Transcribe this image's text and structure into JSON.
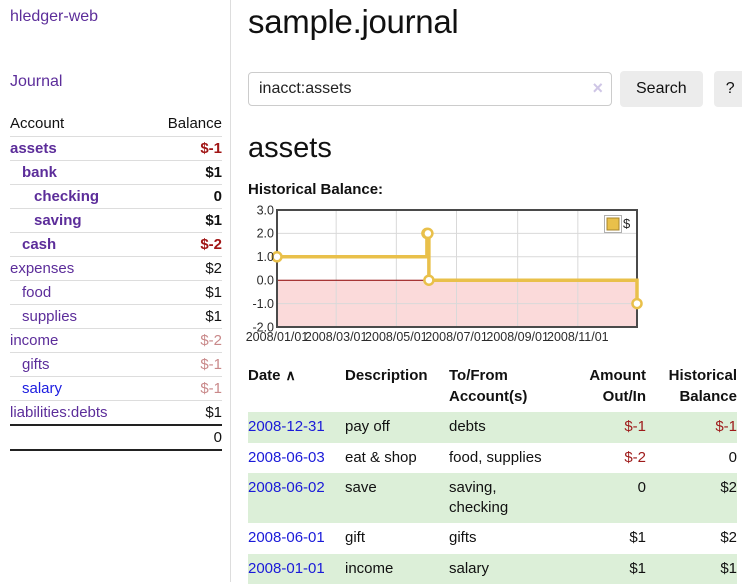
{
  "sidebar": {
    "app_title": "hledger-web",
    "journal_link": "Journal",
    "accounts": {
      "headers": {
        "account": "Account",
        "balance": "Balance"
      },
      "rows": [
        {
          "name": "assets",
          "indent": 0,
          "bold": true,
          "link": "purple",
          "balance": "$-1",
          "style": "neg-strong"
        },
        {
          "name": "bank",
          "indent": 1,
          "bold": true,
          "link": "purple",
          "balance": "$1",
          "style": "pos-strong"
        },
        {
          "name": "checking",
          "indent": 2,
          "bold": true,
          "link": "purple",
          "balance": "0",
          "style": "pos-strong"
        },
        {
          "name": "saving",
          "indent": 2,
          "bold": true,
          "link": "purple",
          "balance": "$1",
          "style": "pos-strong"
        },
        {
          "name": "cash",
          "indent": 1,
          "bold": true,
          "link": "purple",
          "balance": "$-2",
          "style": "neg-strong"
        },
        {
          "name": "expenses",
          "indent": 0,
          "bold": false,
          "link": "purple",
          "balance": "$2",
          "style": "pos"
        },
        {
          "name": "food",
          "indent": 1,
          "bold": false,
          "link": "purple",
          "balance": "$1",
          "style": "pos"
        },
        {
          "name": "supplies",
          "indent": 1,
          "bold": false,
          "link": "purple",
          "balance": "$1",
          "style": "pos"
        },
        {
          "name": "income",
          "indent": 0,
          "bold": false,
          "link": "purple",
          "balance": "$-2",
          "style": "neg-faded"
        },
        {
          "name": "gifts",
          "indent": 1,
          "bold": false,
          "link": "purple",
          "balance": "$-1",
          "style": "neg-faded"
        },
        {
          "name": "salary",
          "indent": 1,
          "bold": false,
          "link": "blue",
          "balance": "$-1",
          "style": "neg-faded"
        },
        {
          "name": "liabilities:debts",
          "indent": 0,
          "bold": false,
          "link": "purple",
          "balance": "$1",
          "style": "pos"
        }
      ],
      "total": "0"
    }
  },
  "header": {
    "title": "sample.journal"
  },
  "search": {
    "value": "inacct:assets",
    "clear_icon": "×",
    "search_label": "Search",
    "help_label": "?"
  },
  "account_page": {
    "heading": "assets",
    "chart_label": "Historical Balance:"
  },
  "chart_data": {
    "type": "line",
    "title": "Historical Balance",
    "legend": [
      {
        "label": "$",
        "color": "#e9c04a"
      }
    ],
    "step": true,
    "ylim": [
      -2,
      3
    ],
    "y_ticks": [
      {
        "label": "3.0",
        "value": 3
      },
      {
        "label": "2.0",
        "value": 2
      },
      {
        "label": "1.0",
        "value": 1
      },
      {
        "label": "0.0",
        "value": 0
      },
      {
        "label": "-1.0",
        "value": -1
      },
      {
        "label": "-2.0",
        "value": -2
      }
    ],
    "x_domain": [
      "2008-01-01",
      "2008-12-31"
    ],
    "x_ticks": [
      {
        "label": "2008/01/01",
        "date": "2008-01-01"
      },
      {
        "label": "2008/03/01",
        "date": "2008-03-01"
      },
      {
        "label": "2008/05/01",
        "date": "2008-05-01"
      },
      {
        "label": "2008/07/01",
        "date": "2008-07-01"
      },
      {
        "label": "2008/09/01",
        "date": "2008-09-01"
      },
      {
        "label": "2008/11/01",
        "date": "2008-11-01"
      }
    ],
    "series": [
      {
        "name": "$",
        "color": "#e9c04a",
        "points": [
          {
            "date": "2008-01-01",
            "value": 1
          },
          {
            "date": "2008-06-01",
            "value": 2
          },
          {
            "date": "2008-06-02",
            "value": 2
          },
          {
            "date": "2008-06-03",
            "value": 0
          },
          {
            "date": "2008-12-31",
            "value": -1
          }
        ]
      }
    ],
    "colors": {
      "grid": "#d9d9d9",
      "frame": "#4a4a4a",
      "zero_line": "#8b0000",
      "negative_region": "#fbdada"
    }
  },
  "register": {
    "headers": {
      "date": "Date",
      "sort_indicator": "∧",
      "description": "Description",
      "tofrom_line1": "To/From",
      "tofrom_line2": "Account(s)",
      "amount_line1": "Amount",
      "amount_line2": "Out/In",
      "balance_line1": "Historical",
      "balance_line2": "Balance"
    },
    "rows": [
      {
        "date": "2008-12-31",
        "description": "pay off",
        "accounts_lines": [
          "debts"
        ],
        "amount": "$-1",
        "amount_neg": true,
        "balance": "$-1",
        "balance_neg": true,
        "shaded": true
      },
      {
        "date": "2008-06-03",
        "description": "eat & shop",
        "accounts_lines": [
          "food, supplies"
        ],
        "amount": "$-2",
        "amount_neg": true,
        "balance": "0",
        "balance_neg": false,
        "shaded": false
      },
      {
        "date": "2008-06-02",
        "description": "save",
        "accounts_lines": [
          "saving,",
          "checking"
        ],
        "amount": "0",
        "amount_neg": false,
        "balance": "$2",
        "balance_neg": false,
        "shaded": true
      },
      {
        "date": "2008-06-01",
        "description": "gift",
        "accounts_lines": [
          "gifts"
        ],
        "amount": "$1",
        "amount_neg": false,
        "balance": "$2",
        "balance_neg": false,
        "shaded": false
      },
      {
        "date": "2008-01-01",
        "description": "income",
        "accounts_lines": [
          "salary"
        ],
        "amount": "$1",
        "amount_neg": false,
        "balance": "$1",
        "balance_neg": false,
        "shaded": true
      }
    ]
  }
}
